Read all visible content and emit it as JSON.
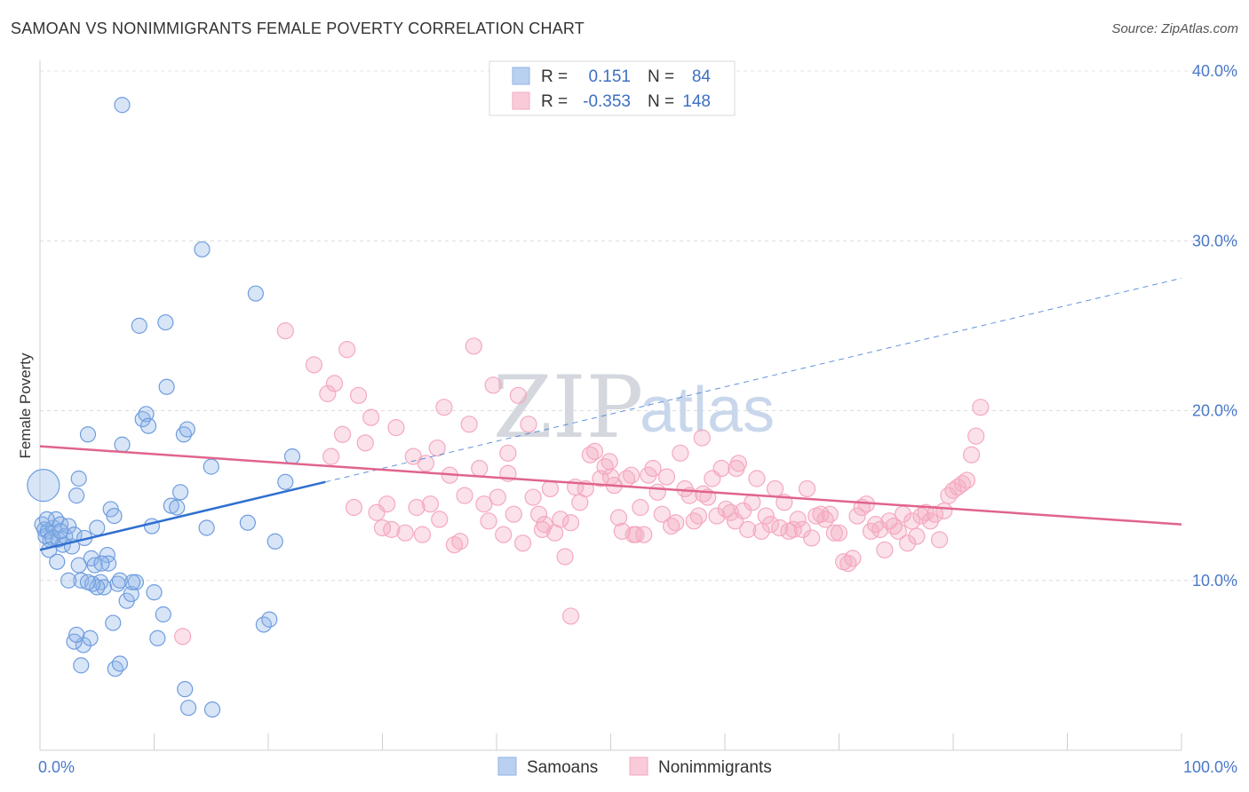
{
  "header": {
    "title": "SAMOAN VS NONIMMIGRANTS FEMALE POVERTY CORRELATION CHART",
    "source": "Source: ZipAtlas.com"
  },
  "chart_data": {
    "type": "scatter",
    "title": "SAMOAN VS NONIMMIGRANTS FEMALE POVERTY CORRELATION CHART",
    "xlabel": "",
    "ylabel": "Female Poverty",
    "xlim": [
      0,
      100
    ],
    "ylim": [
      0,
      40
    ],
    "x_ticks": [
      "0.0%",
      "100.0%"
    ],
    "y_ticks": [
      {
        "value": 10,
        "label": "10.0%"
      },
      {
        "value": 20,
        "label": "20.0%"
      },
      {
        "value": 30,
        "label": "30.0%"
      },
      {
        "value": 40,
        "label": "40.0%"
      }
    ],
    "grid": "horizontal dashed",
    "legend_position": "top-center",
    "watermark": {
      "zip": "ZIP",
      "atlas": "atlas"
    },
    "stats_legend": [
      {
        "r_label": "R =",
        "r_value": "0.151",
        "n_label": "N =",
        "n_value": "84"
      },
      {
        "r_label": "R =",
        "r_value": "-0.353",
        "n_label": "N =",
        "n_value": "148"
      }
    ],
    "series": [
      {
        "name": "Samoans",
        "color": "#8fb4e8",
        "line_color": "#2f6fd0",
        "trend": {
          "x0": 0,
          "y0": 11.8,
          "x1": 25,
          "y1": 15.8,
          "x_ext": 100,
          "y_ext": 27.8
        },
        "points": [
          [
            0.3,
            15.6,
            1
          ],
          [
            0.2,
            13.3,
            0
          ],
          [
            0.4,
            13.0,
            0
          ],
          [
            0.5,
            12.6,
            0
          ],
          [
            0.7,
            12.9,
            0
          ],
          [
            0.9,
            12.4,
            0
          ],
          [
            1.2,
            13.1,
            0
          ],
          [
            1.4,
            13.6,
            0
          ],
          [
            1.6,
            12.4,
            0
          ],
          [
            1.8,
            13.3,
            0
          ],
          [
            2.0,
            12.1,
            0
          ],
          [
            2.2,
            12.6,
            0
          ],
          [
            2.5,
            13.2,
            0
          ],
          [
            1.1,
            12.5,
            0
          ],
          [
            0.8,
            11.8,
            0
          ],
          [
            1.5,
            11.1,
            0
          ],
          [
            2.8,
            12.0,
            0
          ],
          [
            3.0,
            12.7,
            0
          ],
          [
            3.2,
            15.0,
            0
          ],
          [
            3.4,
            16.0,
            0
          ],
          [
            3.6,
            10.0,
            0
          ],
          [
            3.9,
            12.5,
            0
          ],
          [
            4.2,
            18.6,
            0
          ],
          [
            4.5,
            11.3,
            0
          ],
          [
            4.8,
            10.9,
            0
          ],
          [
            5.0,
            13.1,
            0
          ],
          [
            5.3,
            9.9,
            0
          ],
          [
            5.6,
            9.6,
            0
          ],
          [
            5.9,
            11.5,
            0
          ],
          [
            6.2,
            14.2,
            0
          ],
          [
            6.5,
            13.8,
            0
          ],
          [
            6.8,
            9.8,
            0
          ],
          [
            7.0,
            10.0,
            0
          ],
          [
            7.2,
            18.0,
            0
          ],
          [
            7.6,
            8.8,
            0
          ],
          [
            8.0,
            9.2,
            0
          ],
          [
            8.4,
            9.9,
            0
          ],
          [
            8.7,
            25.0,
            0
          ],
          [
            9.0,
            19.5,
            0
          ],
          [
            9.3,
            19.8,
            0
          ],
          [
            9.5,
            19.1,
            0
          ],
          [
            9.8,
            13.2,
            0
          ],
          [
            10.0,
            9.3,
            0
          ],
          [
            10.3,
            6.6,
            0
          ],
          [
            10.8,
            8.0,
            0
          ],
          [
            11.1,
            21.4,
            0
          ],
          [
            11.5,
            14.4,
            0
          ],
          [
            12.0,
            14.3,
            0
          ],
          [
            12.3,
            15.2,
            0
          ],
          [
            12.6,
            18.6,
            0
          ],
          [
            12.9,
            18.9,
            0
          ],
          [
            11.0,
            25.2,
            0
          ],
          [
            7.2,
            38.0,
            0
          ],
          [
            12.7,
            3.6,
            0
          ],
          [
            13.0,
            2.5,
            0
          ],
          [
            14.2,
            29.5,
            0
          ],
          [
            14.6,
            13.1,
            0
          ],
          [
            15.0,
            16.7,
            0
          ],
          [
            18.2,
            13.4,
            0
          ],
          [
            18.9,
            26.9,
            0
          ],
          [
            19.6,
            7.4,
            0
          ],
          [
            20.1,
            7.7,
            0
          ],
          [
            20.6,
            12.3,
            0
          ],
          [
            21.5,
            15.8,
            0
          ],
          [
            22.1,
            17.3,
            0
          ],
          [
            3.8,
            6.2,
            0
          ],
          [
            4.4,
            6.6,
            0
          ],
          [
            3.0,
            6.4,
            0
          ],
          [
            3.2,
            6.8,
            0
          ],
          [
            3.6,
            5.0,
            0
          ],
          [
            6.6,
            4.8,
            0
          ],
          [
            7.0,
            5.1,
            0
          ],
          [
            15.1,
            2.4,
            0
          ],
          [
            5.0,
            9.6,
            0
          ],
          [
            2.5,
            10.0,
            0
          ],
          [
            3.4,
            10.9,
            0
          ],
          [
            6.4,
            7.5,
            0
          ],
          [
            4.6,
            9.8,
            0
          ],
          [
            6.0,
            11.0,
            0
          ],
          [
            5.4,
            11.0,
            0
          ],
          [
            4.2,
            9.9,
            0
          ],
          [
            8.1,
            9.9,
            0
          ],
          [
            0.6,
            13.6,
            0
          ],
          [
            1.8,
            12.9,
            0
          ]
        ]
      },
      {
        "name": "Nonimmigrants",
        "color": "#f4a9c0",
        "line_color": "#e0648c",
        "trend": {
          "x0": 0,
          "y0": 17.9,
          "x1": 100,
          "y1": 13.3
        },
        "points": [
          [
            12.5,
            6.7
          ],
          [
            21.5,
            24.7
          ],
          [
            24.0,
            22.7
          ],
          [
            25.2,
            21.0
          ],
          [
            25.8,
            21.6
          ],
          [
            26.5,
            18.6
          ],
          [
            26.9,
            23.6
          ],
          [
            25.5,
            17.3
          ],
          [
            27.5,
            14.3
          ],
          [
            28.5,
            18.1
          ],
          [
            29.0,
            19.6
          ],
          [
            29.5,
            14.0
          ],
          [
            30.0,
            13.1
          ],
          [
            30.4,
            14.5
          ],
          [
            31.2,
            19.0
          ],
          [
            32.0,
            12.8
          ],
          [
            32.7,
            17.3
          ],
          [
            33.0,
            14.3
          ],
          [
            33.5,
            12.7
          ],
          [
            34.2,
            14.5
          ],
          [
            34.8,
            17.8
          ],
          [
            35.4,
            20.2
          ],
          [
            35.9,
            16.2
          ],
          [
            36.3,
            12.1
          ],
          [
            36.8,
            12.3
          ],
          [
            37.2,
            15.0
          ],
          [
            37.6,
            19.2
          ],
          [
            38.0,
            23.8
          ],
          [
            38.5,
            16.6
          ],
          [
            38.9,
            14.5
          ],
          [
            39.3,
            13.5
          ],
          [
            39.7,
            21.5
          ],
          [
            40.1,
            14.9
          ],
          [
            40.6,
            12.7
          ],
          [
            41.0,
            17.5
          ],
          [
            41.5,
            13.9
          ],
          [
            41.9,
            20.9
          ],
          [
            42.3,
            12.2
          ],
          [
            42.8,
            19.2
          ],
          [
            43.2,
            14.9
          ],
          [
            43.7,
            13.9
          ],
          [
            44.2,
            13.3
          ],
          [
            44.7,
            15.4
          ],
          [
            45.1,
            12.8
          ],
          [
            45.6,
            13.6
          ],
          [
            46.0,
            11.4
          ],
          [
            46.5,
            13.4
          ],
          [
            46.9,
            15.5
          ],
          [
            47.3,
            14.6
          ],
          [
            47.8,
            15.4
          ],
          [
            48.2,
            17.4
          ],
          [
            48.6,
            17.6
          ],
          [
            49.1,
            16.0
          ],
          [
            49.5,
            16.7
          ],
          [
            49.9,
            17.0
          ],
          [
            50.3,
            15.6
          ],
          [
            50.7,
            13.7
          ],
          [
            51.0,
            12.9
          ],
          [
            51.4,
            16.0
          ],
          [
            51.8,
            16.2
          ],
          [
            52.2,
            12.7
          ],
          [
            52.6,
            14.3
          ],
          [
            52.9,
            12.7
          ],
          [
            53.3,
            16.2
          ],
          [
            53.7,
            16.6
          ],
          [
            54.1,
            15.2
          ],
          [
            54.5,
            13.9
          ],
          [
            54.9,
            16.1
          ],
          [
            55.3,
            13.2
          ],
          [
            55.7,
            13.4
          ],
          [
            56.1,
            17.5
          ],
          [
            56.5,
            15.4
          ],
          [
            56.9,
            15.0
          ],
          [
            57.3,
            13.5
          ],
          [
            57.7,
            13.8
          ],
          [
            58.1,
            15.1
          ],
          [
            58.5,
            14.9
          ],
          [
            58.9,
            16.0
          ],
          [
            59.3,
            13.8
          ],
          [
            59.7,
            16.6
          ],
          [
            60.1,
            14.2
          ],
          [
            60.5,
            14.0
          ],
          [
            60.9,
            13.5
          ],
          [
            61.2,
            16.9
          ],
          [
            61.6,
            14.1
          ],
          [
            62.0,
            13.0
          ],
          [
            62.4,
            14.6
          ],
          [
            62.8,
            16.0
          ],
          [
            63.2,
            12.9
          ],
          [
            63.6,
            13.8
          ],
          [
            64.0,
            13.3
          ],
          [
            64.4,
            15.4
          ],
          [
            64.8,
            13.1
          ],
          [
            65.2,
            14.6
          ],
          [
            65.6,
            12.9
          ],
          [
            66.0,
            13.0
          ],
          [
            66.4,
            13.6
          ],
          [
            66.8,
            13.0
          ],
          [
            67.2,
            15.4
          ],
          [
            67.6,
            12.5
          ],
          [
            68.0,
            13.8
          ],
          [
            68.4,
            13.9
          ],
          [
            68.8,
            13.6
          ],
          [
            69.2,
            13.9
          ],
          [
            69.6,
            12.8
          ],
          [
            70.0,
            12.8
          ],
          [
            70.4,
            11.1
          ],
          [
            70.8,
            11.0
          ],
          [
            71.2,
            11.3
          ],
          [
            71.6,
            13.8
          ],
          [
            72.0,
            14.3
          ],
          [
            72.4,
            14.5
          ],
          [
            72.8,
            12.9
          ],
          [
            73.2,
            13.3
          ],
          [
            73.6,
            13.0
          ],
          [
            74.0,
            11.8
          ],
          [
            74.4,
            13.5
          ],
          [
            74.8,
            13.2
          ],
          [
            75.2,
            12.9
          ],
          [
            75.6,
            13.9
          ],
          [
            76.0,
            12.2
          ],
          [
            76.4,
            13.5
          ],
          [
            76.8,
            12.6
          ],
          [
            77.2,
            13.8
          ],
          [
            77.6,
            14.0
          ],
          [
            78.0,
            13.5
          ],
          [
            78.4,
            13.9
          ],
          [
            78.8,
            12.4
          ],
          [
            79.2,
            14.1
          ],
          [
            79.6,
            15.0
          ],
          [
            80.0,
            15.3
          ],
          [
            80.4,
            15.5
          ],
          [
            80.8,
            15.7
          ],
          [
            81.2,
            15.9
          ],
          [
            81.6,
            17.4
          ],
          [
            82.0,
            18.5
          ],
          [
            82.4,
            20.2
          ],
          [
            46.5,
            7.9
          ],
          [
            41.0,
            16.3
          ],
          [
            27.9,
            20.9
          ],
          [
            33.8,
            16.9
          ],
          [
            58.0,
            18.4
          ],
          [
            61.0,
            16.6
          ],
          [
            52.0,
            12.7
          ],
          [
            44.0,
            13.0
          ],
          [
            30.8,
            13.0
          ],
          [
            35.0,
            13.6
          ],
          [
            50.0,
            16.1
          ]
        ]
      }
    ],
    "bottom_legend": [
      "Samoans",
      "Nonimmigrants"
    ]
  }
}
